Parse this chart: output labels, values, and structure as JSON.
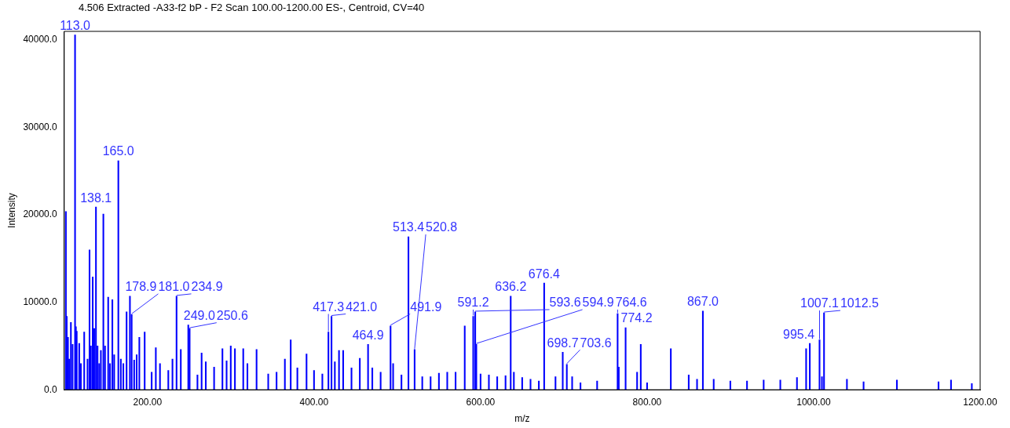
{
  "chart_data": {
    "type": "bar",
    "title": "4.506 Extracted -A33-f2  bP - F2 Scan 100.00-1200.00 ES-, Centroid, CV=40",
    "xlabel": "m/z",
    "ylabel": "Intensity",
    "color": "#0000ff",
    "x": [
      102,
      103,
      104.5,
      106,
      108,
      110,
      113.0,
      114,
      115,
      118,
      120,
      124,
      128,
      130.4,
      132,
      134.2,
      136,
      138.1,
      140,
      142,
      144,
      147,
      149,
      152.8,
      155,
      157.8,
      160,
      165.0,
      168,
      171,
      174.9,
      178.9,
      181.0,
      184,
      187,
      190.2,
      196.6,
      205,
      210,
      215,
      225,
      230,
      234.9,
      240,
      249.0,
      250.6,
      260,
      265,
      270,
      280,
      290,
      295,
      300,
      305,
      315,
      320,
      331,
      345,
      355,
      365,
      372,
      380,
      391,
      400,
      410,
      417.3,
      421.0,
      425,
      430,
      435,
      445,
      455,
      464.9,
      470,
      480,
      491.9,
      495,
      505,
      513.4,
      520.8,
      530,
      540,
      550,
      560,
      570,
      581,
      591.2,
      593.6,
      594.9,
      600,
      610,
      620,
      630,
      636.2,
      640,
      650,
      660,
      670,
      676.4,
      690,
      698.7,
      703.6,
      710,
      720,
      740,
      764.6,
      766,
      774.2,
      788,
      792.4,
      800,
      828.5,
      850,
      860,
      867.0,
      880,
      900,
      920,
      940,
      960,
      980,
      991,
      995.4,
      1007.1,
      1010,
      1012.5,
      1040,
      1060,
      1100,
      1150,
      1165,
      1190
    ],
    "values": [
      20400,
      8400,
      6000,
      3500,
      7700,
      5200,
      40600,
      7200,
      6700,
      5300,
      3000,
      6600,
      3500,
      16000,
      5000,
      12900,
      7000,
      20900,
      5000,
      3000,
      4500,
      20100,
      5000,
      10600,
      3000,
      10300,
      4000,
      26200,
      3500,
      3000,
      8900,
      10700,
      8600,
      3400,
      4000,
      6000,
      6600,
      2000,
      4800,
      3000,
      2200,
      3500,
      10700,
      4600,
      7400,
      7000,
      1700,
      4200,
      3200,
      2600,
      4700,
      3300,
      5000,
      4700,
      4700,
      3000,
      4600,
      1800,
      2000,
      3500,
      5700,
      2500,
      4100,
      2200,
      1800,
      6600,
      8400,
      3200,
      4500,
      4500,
      2500,
      3600,
      5200,
      2500,
      2000,
      7300,
      3000,
      1700,
      17500,
      4600,
      1500,
      1500,
      1900,
      2000,
      2000,
      7300,
      8400,
      8900,
      5200,
      1800,
      1700,
      1500,
      1600,
      10700,
      2000,
      1400,
      1200,
      1000,
      12200,
      1500,
      4300,
      2900,
      1500,
      800,
      1000,
      8700,
      2600,
      7100,
      2000,
      5200,
      800,
      4700,
      1700,
      1200,
      9000,
      1200,
      1000,
      1000,
      1100,
      1100,
      1400,
      4700,
      5300,
      5700,
      1500,
      8800,
      1200,
      900,
      1100,
      900,
      1100,
      700
    ],
    "xlim": [
      100,
      1200
    ],
    "xticks": [
      {
        "value": 200,
        "label": "200.00"
      },
      {
        "value": 400,
        "label": "400.00"
      },
      {
        "value": 600,
        "label": "600.00"
      },
      {
        "value": 800,
        "label": "800.00"
      },
      {
        "value": 1000,
        "label": "1000.00"
      },
      {
        "value": 1200,
        "label": "1200.00"
      }
    ],
    "ylim": [
      0,
      41000
    ],
    "yticks": [
      {
        "value": 0,
        "label": "0.0"
      },
      {
        "value": 10000,
        "label": "10000.0"
      },
      {
        "value": 20000,
        "label": "20000.0"
      },
      {
        "value": 30000,
        "label": "30000.0"
      },
      {
        "value": 40000,
        "label": "40000.0"
      }
    ],
    "annotations": [
      {
        "text": "113.0",
        "x": 113.0,
        "y": 40600
      },
      {
        "text": "138.1",
        "x": 138.1,
        "y": 20900
      },
      {
        "text": "165.0",
        "x": 165.0,
        "y": 26200
      },
      {
        "text": "178.9",
        "x": 178.9,
        "y": 10700
      },
      {
        "text": "181.0",
        "x": 181.0,
        "y": 8600
      },
      {
        "text": "234.9",
        "x": 234.9,
        "y": 10700
      },
      {
        "text": "249.0",
        "x": 249.0,
        "y": 7400
      },
      {
        "text": "250.6",
        "x": 250.6,
        "y": 7000
      },
      {
        "text": "417.3",
        "x": 417.3,
        "y": 6600
      },
      {
        "text": "421.0",
        "x": 421.0,
        "y": 8400
      },
      {
        "text": "464.9",
        "x": 464.9,
        "y": 5200
      },
      {
        "text": "491.9",
        "x": 491.9,
        "y": 7300
      },
      {
        "text": "513.4",
        "x": 513.4,
        "y": 17500
      },
      {
        "text": "520.8",
        "x": 520.8,
        "y": 4600
      },
      {
        "text": "591.2",
        "x": 591.2,
        "y": 8400
      },
      {
        "text": "593.6",
        "x": 593.6,
        "y": 8900
      },
      {
        "text": "594.9",
        "x": 594.9,
        "y": 5200
      },
      {
        "text": "636.2",
        "x": 636.2,
        "y": 10700
      },
      {
        "text": "676.4",
        "x": 676.4,
        "y": 12200
      },
      {
        "text": "698.7",
        "x": 698.7,
        "y": 4300
      },
      {
        "text": "703.6",
        "x": 703.6,
        "y": 2900
      },
      {
        "text": "764.6",
        "x": 764.6,
        "y": 8700
      },
      {
        "text": "774.2",
        "x": 774.2,
        "y": 7100
      },
      {
        "text": "867.0",
        "x": 867.0,
        "y": 9000
      },
      {
        "text": "995.4",
        "x": 995.4,
        "y": 5300
      },
      {
        "text": "1007.1",
        "x": 1007.1,
        "y": 5700
      },
      {
        "text": "1012.5",
        "x": 1012.5,
        "y": 8800
      }
    ]
  }
}
